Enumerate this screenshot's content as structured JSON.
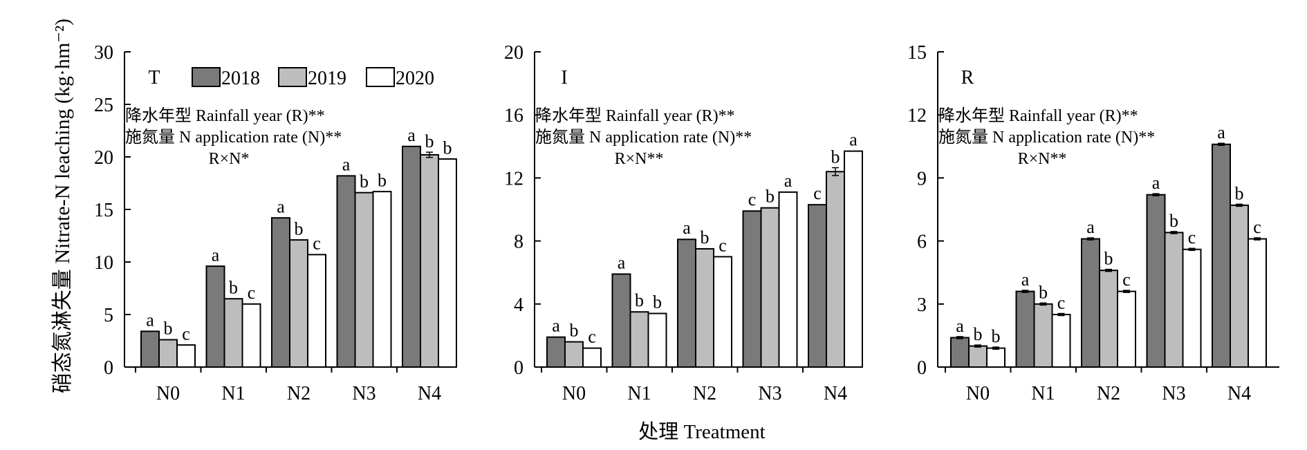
{
  "figure": {
    "ylabel": "硝态氮淋失量 Nitrate-N leaching (kg·hm⁻²)",
    "xlabel": "处理 Treatment"
  },
  "colors": {
    "2018": "#7a7a7a",
    "2019": "#bdbdbd",
    "2020": "#ffffff",
    "stroke": "#000000"
  },
  "chart_data": [
    {
      "type": "bar",
      "panel_label": "T",
      "categories": [
        "N0",
        "N1",
        "N2",
        "N3",
        "N4"
      ],
      "ylim": [
        0,
        30
      ],
      "yticks": [
        0,
        5,
        10,
        15,
        20,
        25,
        30
      ],
      "series": [
        {
          "name": "2018",
          "values": [
            3.4,
            9.6,
            14.2,
            18.2,
            21.0
          ],
          "letters": [
            "a",
            "a",
            "a",
            "a",
            "a"
          ],
          "errors": [
            0.05,
            0.05,
            0.05,
            0.05,
            0.05
          ]
        },
        {
          "name": "2019",
          "values": [
            2.6,
            6.5,
            12.1,
            16.6,
            20.2
          ],
          "letters": [
            "b",
            "b",
            "b",
            "b",
            "b"
          ],
          "errors": [
            0.05,
            0.05,
            0.05,
            0.05,
            0.25
          ]
        },
        {
          "name": "2020",
          "values": [
            2.1,
            6.0,
            10.7,
            16.7,
            19.8
          ],
          "letters": [
            "c",
            "c",
            "c",
            "b",
            "b"
          ],
          "errors": [
            0.05,
            0.05,
            0.05,
            0.05,
            0.05
          ]
        }
      ],
      "stats": [
        "降水年型 Rainfall year (R)**",
        "施氮量 N application rate (N)**",
        "R×N*"
      ],
      "legend": [
        "2018",
        "2019",
        "2020"
      ]
    },
    {
      "type": "bar",
      "panel_label": "I",
      "categories": [
        "N0",
        "N1",
        "N2",
        "N3",
        "N4"
      ],
      "ylim": [
        0,
        20
      ],
      "yticks": [
        0,
        4,
        8,
        12,
        16,
        20
      ],
      "series": [
        {
          "name": "2018",
          "values": [
            1.9,
            5.9,
            8.1,
            9.9,
            10.3
          ],
          "letters": [
            "a",
            "a",
            "a",
            "c",
            "c"
          ],
          "errors": [
            0.05,
            0.05,
            0.05,
            0.05,
            0.05
          ]
        },
        {
          "name": "2019",
          "values": [
            1.6,
            3.5,
            7.5,
            10.1,
            12.4
          ],
          "letters": [
            "b",
            "b",
            "b",
            "b",
            "b"
          ],
          "errors": [
            0.05,
            0.05,
            0.05,
            0.05,
            0.25
          ]
        },
        {
          "name": "2020",
          "values": [
            1.2,
            3.4,
            7.0,
            11.1,
            13.7
          ],
          "letters": [
            "c",
            "b",
            "c",
            "a",
            "a"
          ],
          "errors": [
            0.05,
            0.05,
            0.05,
            0.05,
            0.05
          ]
        }
      ],
      "stats": [
        "降水年型 Rainfall year (R)**",
        "施氮量 N application rate (N)**",
        "R×N**"
      ]
    },
    {
      "type": "bar",
      "panel_label": "R",
      "categories": [
        "N0",
        "N1",
        "N2",
        "N3",
        "N4"
      ],
      "ylim": [
        0,
        15
      ],
      "yticks": [
        0,
        3,
        6,
        9,
        12,
        15
      ],
      "series": [
        {
          "name": "2018",
          "values": [
            1.4,
            3.6,
            6.1,
            8.2,
            10.6
          ],
          "letters": [
            "a",
            "a",
            "a",
            "a",
            "a"
          ],
          "errors": [
            0.05,
            0.05,
            0.05,
            0.05,
            0.05
          ]
        },
        {
          "name": "2019",
          "values": [
            1.0,
            3.0,
            4.6,
            6.4,
            7.7
          ],
          "letters": [
            "b",
            "b",
            "b",
            "b",
            "b"
          ],
          "errors": [
            0.05,
            0.05,
            0.05,
            0.05,
            0.05
          ]
        },
        {
          "name": "2020",
          "values": [
            0.9,
            2.5,
            3.6,
            5.6,
            6.1
          ],
          "letters": [
            "b",
            "c",
            "c",
            "c",
            "c"
          ],
          "errors": [
            0.05,
            0.05,
            0.05,
            0.05,
            0.05
          ]
        }
      ],
      "stats": [
        "降水年型 Rainfall year (R)**",
        "施氮量 N application rate (N)**",
        "R×N**"
      ]
    }
  ]
}
